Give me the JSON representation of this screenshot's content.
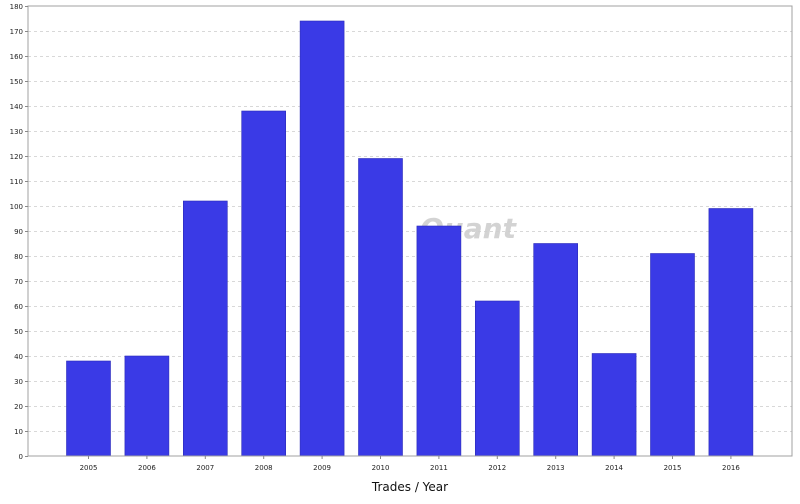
{
  "chart_data": {
    "type": "bar",
    "categories": [
      "2005",
      "2006",
      "2007",
      "2008",
      "2009",
      "2010",
      "2011",
      "2012",
      "2013",
      "2014",
      "2015",
      "2016"
    ],
    "values": [
      38,
      40,
      102,
      138,
      174,
      119,
      92,
      62,
      85,
      41,
      81,
      99
    ],
    "xlabel": "Trades / Year",
    "ylabel": "",
    "ylim": [
      0,
      180
    ],
    "yticks": [
      0,
      10,
      20,
      30,
      40,
      50,
      60,
      70,
      80,
      90,
      100,
      110,
      120,
      130,
      140,
      150,
      160,
      170,
      180
    ],
    "grid": "horizontal-dashed",
    "bar_color": "#3a3ae6",
    "watermark": "Quant"
  }
}
